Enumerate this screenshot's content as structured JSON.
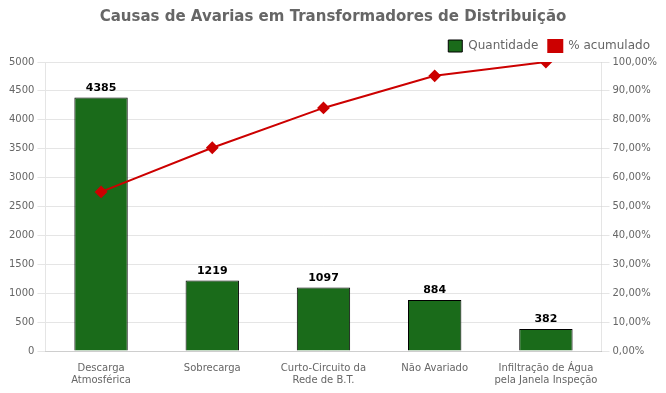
{
  "chart_data": {
    "type": "bar",
    "title": "Causas de Avarias em Transformadores de Distribuição",
    "categories": [
      "Descarga\nAtmosférica",
      "Sobrecarga",
      "Curto-Circuito da\nRede de B.T.",
      "Não Avariado",
      "Infiltração de Água\npela Janela Inspeção"
    ],
    "series": [
      {
        "name": "Quantidade",
        "type": "bar",
        "color": "#1a6b1a",
        "data_labels": true,
        "values": [
          4385,
          1219,
          1097,
          884,
          382
        ]
      },
      {
        "name": "% acumulado",
        "type": "line",
        "axis": "y2",
        "color": "#cc0000",
        "marker": "diamond",
        "values": [
          55.0395,
          70.3402,
          84.1095,
          95.2052,
          100
        ]
      }
    ],
    "ylim": [
      0,
      5000
    ],
    "yticks": [
      0,
      500,
      1000,
      1500,
      2000,
      2500,
      3000,
      3500,
      4000,
      4500,
      5000
    ],
    "y2lim": [
      0,
      100
    ],
    "y2ticks": [
      {
        "value": 0,
        "label": "0,00%"
      },
      {
        "value": 10,
        "label": "10,00%"
      },
      {
        "value": 20,
        "label": "20,00%"
      },
      {
        "value": 30,
        "label": "30,00%"
      },
      {
        "value": 40,
        "label": "40,00%"
      },
      {
        "value": 50,
        "label": "50,00%"
      },
      {
        "value": 60,
        "label": "60,00%"
      },
      {
        "value": 70,
        "label": "70,00%"
      },
      {
        "value": 80,
        "label": "80,00%"
      },
      {
        "value": 90,
        "label": "90,00%"
      },
      {
        "value": 100,
        "label": "100,00%"
      }
    ],
    "grid": true,
    "legend": "top right"
  }
}
